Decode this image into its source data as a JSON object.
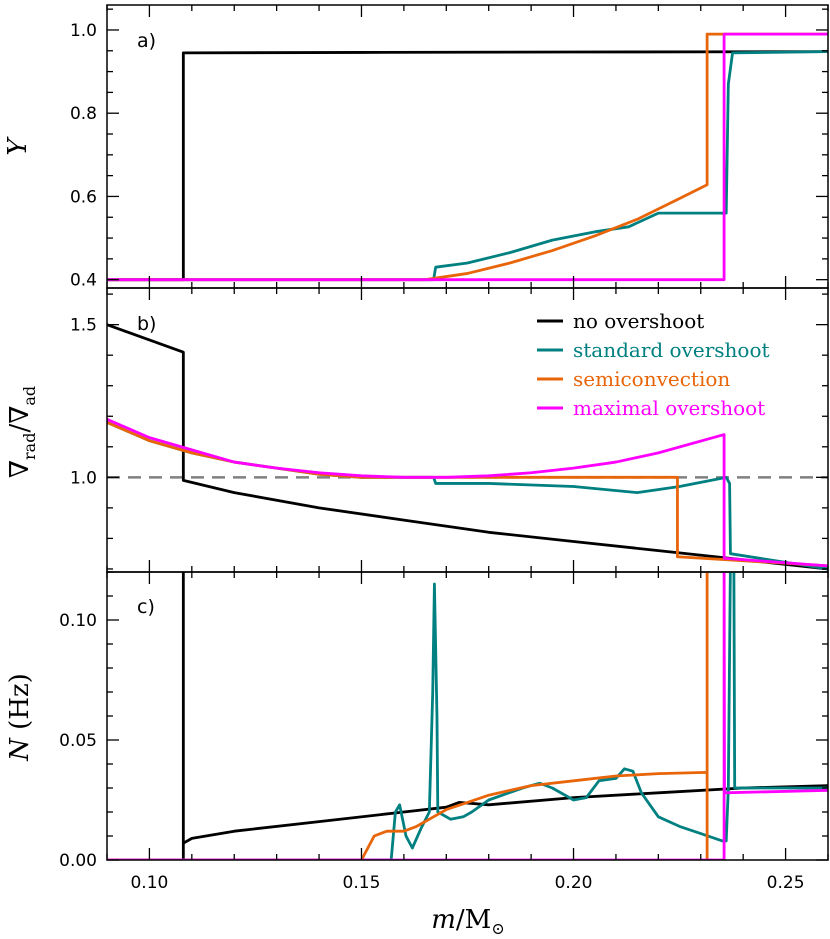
{
  "chart_data": [
    {
      "id": "a",
      "type": "line",
      "panel_label": "a)",
      "ylabel": "Y",
      "xlim": [
        0.09,
        0.26
      ],
      "ylim": [
        0.38,
        1.06
      ],
      "yticks": [
        0.4,
        0.6,
        0.8,
        1.0
      ],
      "ytick_labels": [
        "0.4",
        "0.6",
        "0.8",
        "1.0"
      ],
      "series": [
        {
          "name": "no overshoot",
          "color": "#000000",
          "points": [
            [
              0.09,
              0.4
            ],
            [
              0.108,
              0.4
            ],
            [
              0.108,
              0.945
            ],
            [
              0.15,
              0.946
            ],
            [
              0.2,
              0.947
            ],
            [
              0.26,
              0.948
            ]
          ]
        },
        {
          "name": "standard overshoot",
          "color": "#008080",
          "points": [
            [
              0.09,
              0.4
            ],
            [
              0.167,
              0.4
            ],
            [
              0.1675,
              0.43
            ],
            [
              0.175,
              0.44
            ],
            [
              0.185,
              0.465
            ],
            [
              0.195,
              0.495
            ],
            [
              0.205,
              0.515
            ],
            [
              0.213,
              0.527
            ],
            [
              0.22,
              0.56
            ],
            [
              0.236,
              0.56
            ],
            [
              0.2365,
              0.87
            ],
            [
              0.2375,
              0.945
            ],
            [
              0.26,
              0.948
            ]
          ]
        },
        {
          "name": "semiconvection",
          "color": "#E8650A",
          "points": [
            [
              0.09,
              0.4
            ],
            [
              0.165,
              0.4
            ],
            [
              0.175,
              0.415
            ],
            [
              0.185,
              0.44
            ],
            [
              0.195,
              0.47
            ],
            [
              0.205,
              0.505
            ],
            [
              0.215,
              0.545
            ],
            [
              0.225,
              0.595
            ],
            [
              0.2315,
              0.628
            ],
            [
              0.2315,
              0.99
            ],
            [
              0.26,
              0.99
            ]
          ]
        },
        {
          "name": "maximal overshoot",
          "color": "#FF00FF",
          "points": [
            [
              0.09,
              0.4
            ],
            [
              0.2355,
              0.4
            ],
            [
              0.2355,
              0.99
            ],
            [
              0.26,
              0.99
            ]
          ]
        }
      ]
    },
    {
      "id": "b",
      "type": "line",
      "panel_label": "b)",
      "ylabel_main": "∇",
      "ylabel_sub1": "rad",
      "ylabel_slash": "/∇",
      "ylabel_sub2": "ad",
      "xlim": [
        0.09,
        0.26
      ],
      "ylim": [
        0.69,
        1.62
      ],
      "yticks": [
        1.0,
        1.5
      ],
      "ytick_labels": [
        "1.0",
        "1.5"
      ],
      "reference_line": 1.0,
      "legend": [
        {
          "label": "no overshoot",
          "color": "#000000"
        },
        {
          "label": "standard overshoot",
          "color": "#008080"
        },
        {
          "label": "semiconvection",
          "color": "#E8650A"
        },
        {
          "label": "maximal overshoot",
          "color": "#FF00FF"
        }
      ],
      "series": [
        {
          "name": "no overshoot",
          "color": "#000000",
          "points": [
            [
              0.09,
              1.5
            ],
            [
              0.1,
              1.45
            ],
            [
              0.108,
              1.41
            ],
            [
              0.108,
              0.99
            ],
            [
              0.12,
              0.95
            ],
            [
              0.14,
              0.9
            ],
            [
              0.16,
              0.86
            ],
            [
              0.18,
              0.82
            ],
            [
              0.2,
              0.79
            ],
            [
              0.22,
              0.76
            ],
            [
              0.24,
              0.73
            ],
            [
              0.26,
              0.7
            ]
          ]
        },
        {
          "name": "standard overshoot",
          "color": "#008080",
          "points": [
            [
              0.09,
              1.18
            ],
            [
              0.1,
              1.12
            ],
            [
              0.11,
              1.08
            ],
            [
              0.12,
              1.05
            ],
            [
              0.13,
              1.03
            ],
            [
              0.14,
              1.01
            ],
            [
              0.15,
              1.0
            ],
            [
              0.167,
              1.0
            ],
            [
              0.1675,
              0.98
            ],
            [
              0.18,
              0.98
            ],
            [
              0.2,
              0.97
            ],
            [
              0.215,
              0.95
            ],
            [
              0.225,
              0.97
            ],
            [
              0.236,
              1.0
            ],
            [
              0.2368,
              0.98
            ],
            [
              0.237,
              0.75
            ],
            [
              0.26,
              0.7
            ]
          ]
        },
        {
          "name": "semiconvection",
          "color": "#E8650A",
          "points": [
            [
              0.09,
              1.18
            ],
            [
              0.1,
              1.12
            ],
            [
              0.11,
              1.08
            ],
            [
              0.12,
              1.05
            ],
            [
              0.13,
              1.03
            ],
            [
              0.14,
              1.01
            ],
            [
              0.15,
              1.0
            ],
            [
              0.2245,
              1.0
            ],
            [
              0.2245,
              0.74
            ],
            [
              0.26,
              0.71
            ]
          ]
        },
        {
          "name": "maximal overshoot",
          "color": "#FF00FF",
          "points": [
            [
              0.09,
              1.19
            ],
            [
              0.1,
              1.13
            ],
            [
              0.11,
              1.09
            ],
            [
              0.12,
              1.05
            ],
            [
              0.13,
              1.03
            ],
            [
              0.14,
              1.015
            ],
            [
              0.15,
              1.005
            ],
            [
              0.16,
              1.0
            ],
            [
              0.17,
              1.0
            ],
            [
              0.18,
              1.005
            ],
            [
              0.19,
              1.015
            ],
            [
              0.2,
              1.03
            ],
            [
              0.21,
              1.05
            ],
            [
              0.22,
              1.08
            ],
            [
              0.2355,
              1.14
            ],
            [
              0.2355,
              0.735
            ],
            [
              0.26,
              0.71
            ]
          ]
        }
      ]
    },
    {
      "id": "c",
      "type": "line",
      "panel_label": "c)",
      "ylabel_var": "N",
      "ylabel_unit": " (Hz)",
      "xlabel_var": "m",
      "xlabel_unit": "/M",
      "xlabel_sun": "⊙",
      "xlim": [
        0.09,
        0.26
      ],
      "ylim": [
        0,
        0.12
      ],
      "yticks": [
        0.0,
        0.05,
        0.1
      ],
      "ytick_labels": [
        "0.00",
        "0.05",
        "0.10"
      ],
      "xticks": [
        0.1,
        0.15,
        0.2,
        0.25
      ],
      "xtick_labels": [
        "0.10",
        "0.15",
        "0.20",
        "0.25"
      ],
      "series": [
        {
          "name": "no overshoot",
          "color": "#000000",
          "points": [
            [
              0.09,
              0.0
            ],
            [
              0.108,
              0.0
            ],
            [
              0.108,
              0.125
            ],
            [
              0.108,
              0.007
            ],
            [
              0.11,
              0.009
            ],
            [
              0.12,
              0.012
            ],
            [
              0.14,
              0.016
            ],
            [
              0.16,
              0.02
            ],
            [
              0.17,
              0.022
            ],
            [
              0.173,
              0.024
            ],
            [
              0.18,
              0.023
            ],
            [
              0.2,
              0.026
            ],
            [
              0.22,
              0.028
            ],
            [
              0.24,
              0.03
            ],
            [
              0.26,
              0.031
            ]
          ]
        },
        {
          "name": "standard overshoot",
          "color": "#008080",
          "points": [
            [
              0.09,
              0.0
            ],
            [
              0.157,
              0.0
            ],
            [
              0.158,
              0.02
            ],
            [
              0.159,
              0.023
            ],
            [
              0.1605,
              0.01
            ],
            [
              0.162,
              0.005
            ],
            [
              0.164,
              0.013
            ],
            [
              0.166,
              0.02
            ],
            [
              0.1668,
              0.07
            ],
            [
              0.1672,
              0.115
            ],
            [
              0.1678,
              0.06
            ],
            [
              0.168,
              0.02
            ],
            [
              0.171,
              0.017
            ],
            [
              0.174,
              0.018
            ],
            [
              0.176,
              0.02
            ],
            [
              0.18,
              0.025
            ],
            [
              0.188,
              0.03
            ],
            [
              0.192,
              0.032
            ],
            [
              0.195,
              0.03
            ],
            [
              0.2,
              0.025
            ],
            [
              0.203,
              0.026
            ],
            [
              0.206,
              0.033
            ],
            [
              0.21,
              0.034
            ],
            [
              0.212,
              0.038
            ],
            [
              0.214,
              0.037
            ],
            [
              0.216,
              0.028
            ],
            [
              0.22,
              0.018
            ],
            [
              0.225,
              0.014
            ],
            [
              0.23,
              0.011
            ],
            [
              0.235,
              0.008
            ],
            [
              0.236,
              0.008
            ],
            [
              0.2365,
              0.03
            ],
            [
              0.237,
              0.125
            ],
            [
              0.2378,
              0.125
            ],
            [
              0.238,
              0.03
            ],
            [
              0.26,
              0.03
            ]
          ]
        },
        {
          "name": "semiconvection",
          "color": "#E8650A",
          "points": [
            [
              0.09,
              0.0
            ],
            [
              0.15,
              0.0
            ],
            [
              0.153,
              0.01
            ],
            [
              0.156,
              0.012
            ],
            [
              0.16,
              0.012
            ],
            [
              0.163,
              0.014
            ],
            [
              0.166,
              0.017
            ],
            [
              0.17,
              0.021
            ],
            [
              0.175,
              0.024
            ],
            [
              0.18,
              0.027
            ],
            [
              0.19,
              0.031
            ],
            [
              0.2,
              0.033
            ],
            [
              0.21,
              0.035
            ],
            [
              0.22,
              0.036
            ],
            [
              0.2315,
              0.0365
            ],
            [
              0.2315,
              0.0
            ],
            [
              0.2315,
              0.125
            ]
          ]
        },
        {
          "name": "maximal overshoot",
          "color": "#FF00FF",
          "points": [
            [
              0.09,
              0.0
            ],
            [
              0.2355,
              0.0
            ],
            [
              0.2355,
              0.125
            ],
            [
              0.2356,
              0.028
            ],
            [
              0.26,
              0.029
            ]
          ]
        }
      ]
    }
  ]
}
